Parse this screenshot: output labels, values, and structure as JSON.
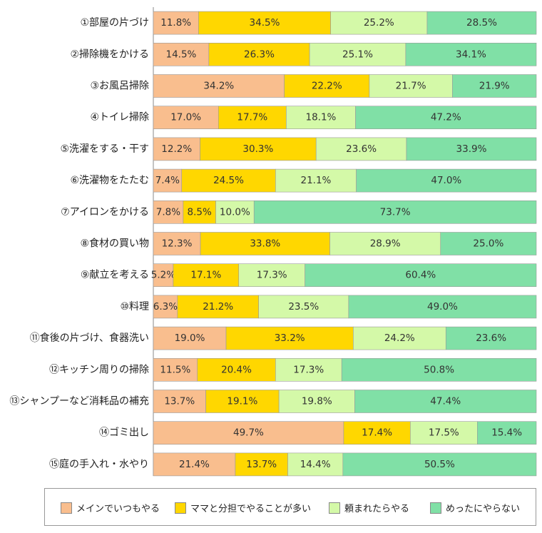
{
  "chart_data": {
    "type": "bar",
    "orientation": "horizontal",
    "stacked": true,
    "normalized_percent": true,
    "categories": [
      "①部屋の片づけ",
      "②掃除機をかける",
      "③お風呂掃除",
      "④トイレ掃除",
      "⑤洗濯をする・干す",
      "⑥洗濯物をたたむ",
      "⑦アイロンをかける",
      "⑧食材の買い物",
      "⑨献立を考える",
      "⑩料理",
      "⑪食後の片づけ、食器洗い",
      "⑫キッチン周りの掃除",
      "⑬シャンプーなど消耗品の補充",
      "⑭ゴミ出し",
      "⑮庭の手入れ・水やり"
    ],
    "series": [
      {
        "name": "メインでいつもやる",
        "color": "#F9BE8E",
        "values": [
          11.8,
          14.5,
          34.2,
          17.0,
          12.2,
          7.4,
          7.8,
          12.3,
          5.2,
          6.3,
          19.0,
          11.5,
          13.7,
          49.7,
          21.4
        ]
      },
      {
        "name": "ママと分担でやることが多い",
        "color": "#FFD700",
        "values": [
          34.5,
          26.3,
          22.2,
          17.7,
          30.3,
          24.5,
          8.5,
          33.8,
          17.1,
          21.2,
          33.2,
          20.4,
          19.1,
          17.4,
          13.7
        ]
      },
      {
        "name": "頼まれたらやる",
        "color": "#D4F9A8",
        "values": [
          25.2,
          25.1,
          21.7,
          18.1,
          23.6,
          21.1,
          10.0,
          28.9,
          17.3,
          23.5,
          24.2,
          17.3,
          19.8,
          17.5,
          14.4
        ]
      },
      {
        "name": "めったにやらない",
        "color": "#80E0A6",
        "values": [
          28.5,
          34.1,
          21.9,
          47.2,
          33.9,
          47.0,
          73.7,
          25.0,
          60.4,
          49.0,
          23.6,
          50.8,
          47.4,
          15.4,
          50.5
        ]
      }
    ],
    "data_labels": true,
    "label_format": "{v}%",
    "legend_position": "bottom",
    "grid": false,
    "xlim": [
      0,
      100
    ]
  }
}
